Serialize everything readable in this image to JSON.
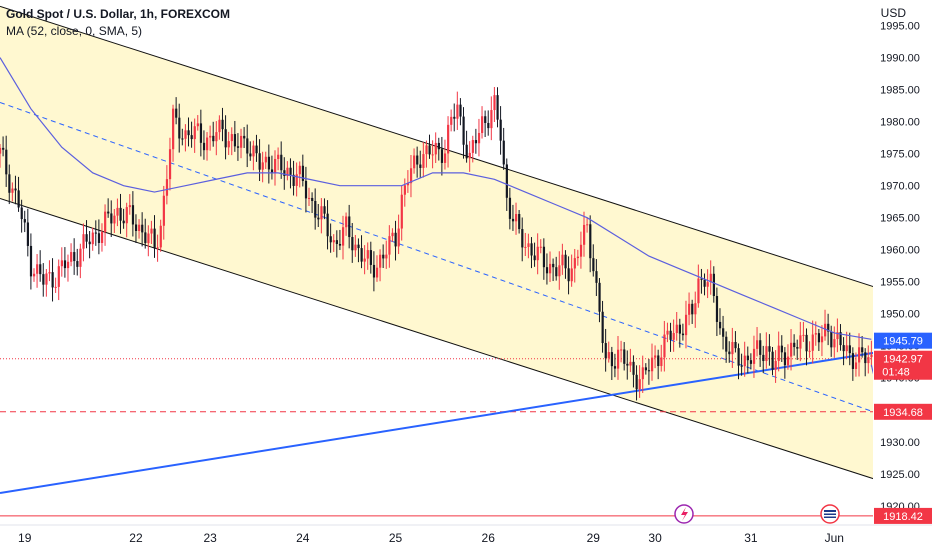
{
  "header": {
    "symbol": "Gold Spot / U.S. Dollar, 1h, FOREXCOM",
    "indicator": "MA (52, close, 0, SMA, 5)",
    "currency": "USD"
  },
  "colors": {
    "up": "#f23645",
    "down": "#131722",
    "ma": "#5b5fde",
    "channel_fill": "#fff8d0",
    "channel_line": "#111111",
    "trend": "#2962ff",
    "level_red": "#f23645",
    "label_blue": "#2962ff"
  },
  "chart_data": {
    "type": "candlestick",
    "ylim": [
      1917,
      1999
    ],
    "y_ticks": [
      1920,
      1925,
      1930,
      1935,
      1940,
      1945,
      1950,
      1955,
      1960,
      1965,
      1970,
      1975,
      1980,
      1985,
      1990,
      1995
    ],
    "x_ticks": [
      "19",
      "22",
      "23",
      "24",
      "25",
      "26",
      "29",
      "30",
      "31",
      "Jun"
    ],
    "last_price": 1942.97,
    "countdown": "01:48",
    "price_labels": [
      {
        "value": 1945.79,
        "text": "1945.79",
        "color": "label_blue"
      },
      {
        "value": 1942.97,
        "text": "1942.97",
        "color": "level_red"
      },
      {
        "value": 1934.68,
        "text": "1934.68",
        "color": "level_red"
      },
      {
        "value": 1918.42,
        "text": "1918.42",
        "color": "level_red"
      }
    ],
    "horizontal_levels": [
      {
        "value": 1934.68,
        "style": "dashed"
      },
      {
        "value": 1918.42,
        "style": "solid"
      },
      {
        "value": 1942.97,
        "style": "dotted"
      }
    ],
    "candle_anchors": [
      [
        0,
        1975
      ],
      [
        6,
        1967
      ],
      [
        10,
        1958
      ],
      [
        14,
        1955
      ],
      [
        18,
        1956
      ],
      [
        22,
        1958
      ],
      [
        26,
        1960
      ],
      [
        30,
        1962
      ],
      [
        34,
        1964
      ],
      [
        38,
        1966
      ],
      [
        42,
        1965
      ],
      [
        46,
        1963
      ],
      [
        48,
        1962
      ],
      [
        50,
        1960
      ],
      [
        52,
        1964
      ],
      [
        54,
        1972
      ],
      [
        56,
        1980
      ],
      [
        60,
        1978
      ],
      [
        64,
        1978
      ],
      [
        68,
        1977
      ],
      [
        72,
        1979
      ],
      [
        76,
        1976
      ],
      [
        80,
        1977
      ],
      [
        84,
        1973
      ],
      [
        88,
        1974
      ],
      [
        92,
        1972
      ],
      [
        96,
        1972
      ],
      [
        100,
        1968
      ],
      [
        104,
        1965
      ],
      [
        108,
        1961
      ],
      [
        112,
        1963
      ],
      [
        116,
        1960
      ],
      [
        120,
        1957
      ],
      [
        124,
        1959
      ],
      [
        128,
        1962
      ],
      [
        130,
        1968
      ],
      [
        132,
        1971
      ],
      [
        136,
        1975
      ],
      [
        140,
        1975
      ],
      [
        144,
        1976
      ],
      [
        146,
        1980
      ],
      [
        148,
        1982
      ],
      [
        150,
        1978
      ],
      [
        152,
        1974
      ],
      [
        154,
        1977
      ],
      [
        156,
        1980
      ],
      [
        160,
        1982
      ],
      [
        162,
        1978
      ],
      [
        164,
        1968
      ],
      [
        168,
        1962
      ],
      [
        172,
        1960
      ],
      [
        176,
        1958
      ],
      [
        180,
        1957
      ],
      [
        184,
        1957
      ],
      [
        186,
        1958
      ],
      [
        188,
        1961
      ],
      [
        190,
        1963
      ],
      [
        192,
        1958
      ],
      [
        194,
        1950
      ],
      [
        196,
        1942
      ],
      [
        200,
        1944
      ],
      [
        204,
        1941
      ],
      [
        208,
        1940
      ],
      [
        212,
        1943
      ],
      [
        216,
        1946
      ],
      [
        220,
        1948
      ],
      [
        224,
        1950
      ],
      [
        226,
        1955
      ],
      [
        228,
        1956
      ],
      [
        230,
        1954
      ],
      [
        232,
        1950
      ],
      [
        234,
        1946
      ],
      [
        238,
        1943
      ],
      [
        242,
        1943
      ],
      [
        246,
        1944
      ],
      [
        248,
        1945
      ],
      [
        250,
        1942
      ],
      [
        254,
        1944
      ],
      [
        258,
        1945
      ],
      [
        262,
        1946
      ],
      [
        266,
        1946
      ],
      [
        268,
        1948
      ],
      [
        270,
        1946
      ],
      [
        272,
        1945
      ],
      [
        274,
        1944
      ],
      [
        278,
        1943
      ],
      [
        282,
        1942.97
      ]
    ],
    "ma_anchors": [
      [
        0,
        1990
      ],
      [
        10,
        1982
      ],
      [
        20,
        1976
      ],
      [
        30,
        1972
      ],
      [
        40,
        1970
      ],
      [
        50,
        1969
      ],
      [
        60,
        1970
      ],
      [
        70,
        1971
      ],
      [
        80,
        1972
      ],
      [
        90,
        1972
      ],
      [
        100,
        1971
      ],
      [
        110,
        1970
      ],
      [
        120,
        1970
      ],
      [
        130,
        1970
      ],
      [
        140,
        1972
      ],
      [
        150,
        1972
      ],
      [
        160,
        1971
      ],
      [
        170,
        1969
      ],
      [
        180,
        1967
      ],
      [
        190,
        1965
      ],
      [
        200,
        1962
      ],
      [
        210,
        1959
      ],
      [
        220,
        1957
      ],
      [
        230,
        1955
      ],
      [
        240,
        1953
      ],
      [
        250,
        1951
      ],
      [
        260,
        1949
      ],
      [
        270,
        1947
      ],
      [
        282,
        1946
      ]
    ],
    "channel": {
      "upper": [
        [
          0,
          1998
        ],
        [
          310,
          1950
        ]
      ],
      "lower": [
        [
          0,
          1968
        ],
        [
          310,
          1920
        ]
      ],
      "mid": [
        [
          0,
          1983
        ],
        [
          310,
          1930
        ]
      ]
    },
    "trendline": [
      [
        0,
        1922
      ],
      [
        310,
        1946
      ]
    ],
    "projection": [
      [
        282,
        1942
      ],
      [
        288,
        1935.5
      ],
      [
        294,
        1934.8
      ],
      [
        298,
        1940
      ],
      [
        303,
        1959
      ]
    ]
  }
}
